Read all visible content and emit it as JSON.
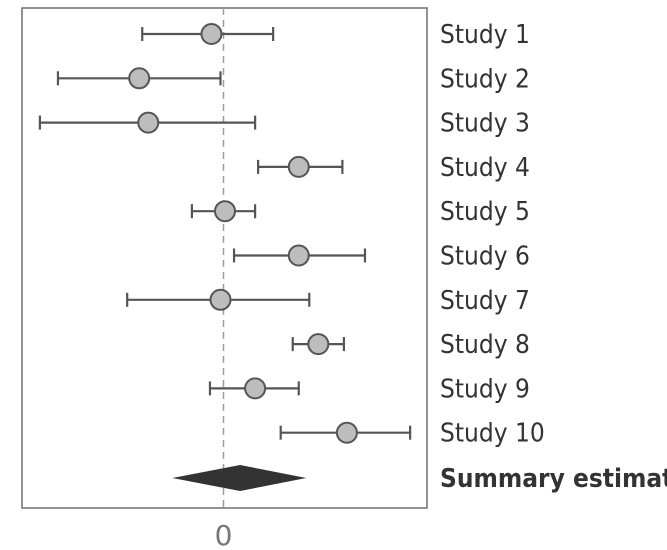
{
  "chart_data": {
    "type": "forest",
    "title": "",
    "xlabel": "",
    "ylabel": "",
    "xlim": [
      -1.3,
      1.45
    ],
    "xticks": [
      0
    ],
    "xtick_labels": [
      "0"
    ],
    "reference_line": 0,
    "grid": false,
    "colors": {
      "point_fill": "#bdbdbd",
      "point_stroke": "#555555",
      "whisker": "#555555",
      "summary": "#333333",
      "reference": "#9e9e9e",
      "frame": "#777777"
    },
    "studies": [
      {
        "label": "Study 1",
        "estimate": -0.08,
        "lower": -0.54,
        "upper": 0.33
      },
      {
        "label": "Study 2",
        "estimate": -0.56,
        "lower": -1.1,
        "upper": -0.02
      },
      {
        "label": "Study 3",
        "estimate": -0.5,
        "lower": -1.22,
        "upper": 0.21
      },
      {
        "label": "Study 4",
        "estimate": 0.5,
        "lower": 0.23,
        "upper": 0.79
      },
      {
        "label": "Study 5",
        "estimate": 0.01,
        "lower": -0.21,
        "upper": 0.21
      },
      {
        "label": "Study 6",
        "estimate": 0.5,
        "lower": 0.07,
        "upper": 0.94
      },
      {
        "label": "Study 7",
        "estimate": -0.02,
        "lower": -0.64,
        "upper": 0.57
      },
      {
        "label": "Study 8",
        "estimate": 0.63,
        "lower": 0.46,
        "upper": 0.8
      },
      {
        "label": "Study 9",
        "estimate": 0.21,
        "lower": -0.09,
        "upper": 0.5
      },
      {
        "label": "Study 10",
        "estimate": 0.82,
        "lower": 0.38,
        "upper": 1.24
      }
    ],
    "summary": {
      "label": "Summary estimate",
      "estimate": 0.11,
      "lower": -0.34,
      "upper": 0.55
    }
  }
}
